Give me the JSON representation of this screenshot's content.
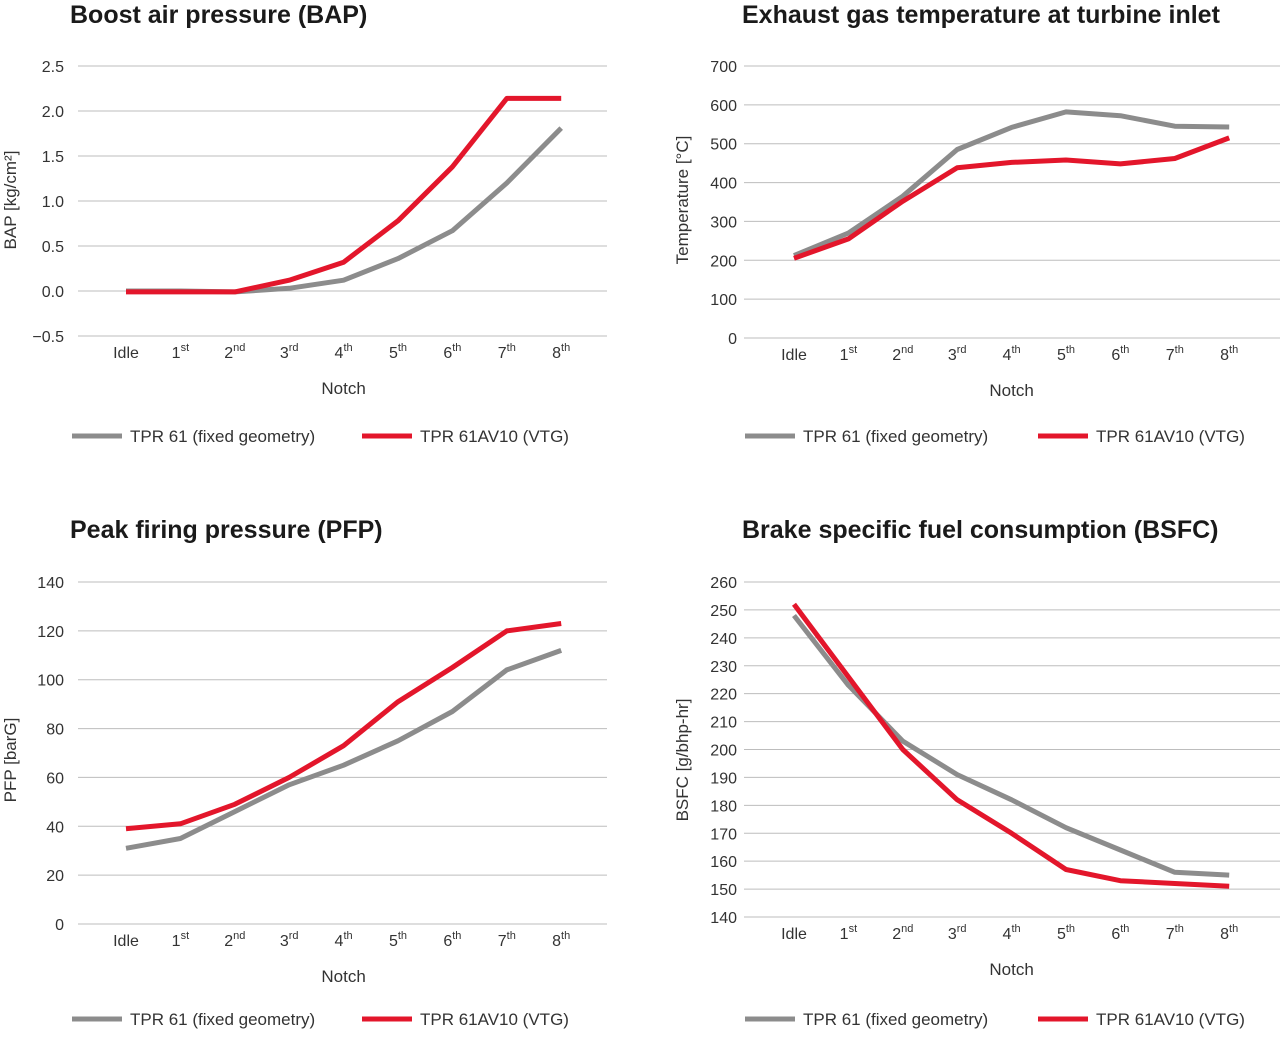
{
  "colors": {
    "fixed": "#8c8c8c",
    "vtg": "#e3162b",
    "grid": "#bdbdbd"
  },
  "legend": {
    "fixed": "TPR 61 (fixed geometry)",
    "vtg": "TPR 61AV10 (VTG)"
  },
  "chart_data": [
    {
      "type": "line",
      "title": "Boost air pressure (BAP)",
      "xlabel": "Notch",
      "ylabel": "BAP [kg/cm²]",
      "ylim": [
        -0.5,
        2.5
      ],
      "yticks": [
        "2.5",
        "2.0",
        "1.5",
        "1.0",
        "0.5",
        "0.0",
        "−0.5"
      ],
      "categories": [
        [
          "Idle",
          ""
        ],
        [
          "1",
          "st"
        ],
        [
          "2",
          "nd"
        ],
        [
          "3",
          "rd"
        ],
        [
          "4",
          "th"
        ],
        [
          "5",
          "th"
        ],
        [
          "6",
          "th"
        ],
        [
          "7",
          "th"
        ],
        [
          "8",
          "th"
        ]
      ],
      "series": [
        {
          "name": "TPR 61 (fixed geometry)",
          "key": "fixed",
          "values": [
            0.0,
            0.0,
            -0.01,
            0.03,
            0.12,
            0.36,
            0.67,
            1.2,
            1.81
          ]
        },
        {
          "name": "TPR 61AV10 (VTG)",
          "key": "vtg",
          "values": [
            -0.01,
            -0.01,
            -0.01,
            0.12,
            0.32,
            0.78,
            1.38,
            2.14,
            2.14
          ]
        }
      ]
    },
    {
      "type": "line",
      "title": "Exhaust gas temperature at turbine inlet",
      "xlabel": "Notch",
      "ylabel": "Temperature [°C]",
      "ylim": [
        0,
        700
      ],
      "yticks": [
        "700",
        "600",
        "500",
        "400",
        "300",
        "200",
        "100",
        "0"
      ],
      "categories": [
        [
          "Idle",
          ""
        ],
        [
          "1",
          "st"
        ],
        [
          "2",
          "nd"
        ],
        [
          "3",
          "rd"
        ],
        [
          "4",
          "th"
        ],
        [
          "5",
          "th"
        ],
        [
          "6",
          "th"
        ],
        [
          "7",
          "th"
        ],
        [
          "8",
          "th"
        ]
      ],
      "series": [
        {
          "name": "TPR 61 (fixed geometry)",
          "key": "fixed",
          "values": [
            212,
            270,
            365,
            485,
            542,
            582,
            572,
            545,
            543
          ]
        },
        {
          "name": "TPR 61AV10 (VTG)",
          "key": "vtg",
          "values": [
            205,
            255,
            352,
            438,
            452,
            458,
            448,
            462,
            515
          ]
        }
      ]
    },
    {
      "type": "line",
      "title": "Peak firing pressure (PFP)",
      "xlabel": "Notch",
      "ylabel": "PFP [barG]",
      "ylim": [
        0,
        140
      ],
      "yticks": [
        "140",
        "120",
        "100",
        "80",
        "60",
        "40",
        "20",
        "0"
      ],
      "categories": [
        [
          "Idle",
          ""
        ],
        [
          "1",
          "st"
        ],
        [
          "2",
          "nd"
        ],
        [
          "3",
          "rd"
        ],
        [
          "4",
          "th"
        ],
        [
          "5",
          "th"
        ],
        [
          "6",
          "th"
        ],
        [
          "7",
          "th"
        ],
        [
          "8",
          "th"
        ]
      ],
      "series": [
        {
          "name": "TPR 61 (fixed geometry)",
          "key": "fixed",
          "values": [
            31,
            35,
            46,
            57,
            65,
            75,
            87,
            104,
            112
          ]
        },
        {
          "name": "TPR 61AV10 (VTG)",
          "key": "vtg",
          "values": [
            39,
            41,
            49,
            60,
            73,
            91,
            105,
            120,
            123
          ]
        }
      ]
    },
    {
      "type": "line",
      "title": "Brake specific fuel consumption (BSFC)",
      "xlabel": "Notch",
      "ylabel": "BSFC [g/bhp-hr]",
      "ylim": [
        140,
        260
      ],
      "yticks": [
        "260",
        "250",
        "240",
        "230",
        "220",
        "210",
        "200",
        "190",
        "180",
        "170",
        "160",
        "150",
        "140"
      ],
      "categories": [
        [
          "Idle",
          ""
        ],
        [
          "1",
          "st"
        ],
        [
          "2",
          "nd"
        ],
        [
          "3",
          "rd"
        ],
        [
          "4",
          "th"
        ],
        [
          "5",
          "th"
        ],
        [
          "6",
          "th"
        ],
        [
          "7",
          "th"
        ],
        [
          "8",
          "th"
        ]
      ],
      "series": [
        {
          "name": "TPR 61 (fixed geometry)",
          "key": "fixed",
          "values": [
            248,
            223,
            203,
            191,
            182,
            172,
            164,
            156,
            155
          ]
        },
        {
          "name": "TPR 61AV10 (VTG)",
          "key": "vtg",
          "values": [
            252,
            226,
            200,
            182,
            170,
            157,
            153,
            152,
            151
          ]
        }
      ]
    }
  ]
}
